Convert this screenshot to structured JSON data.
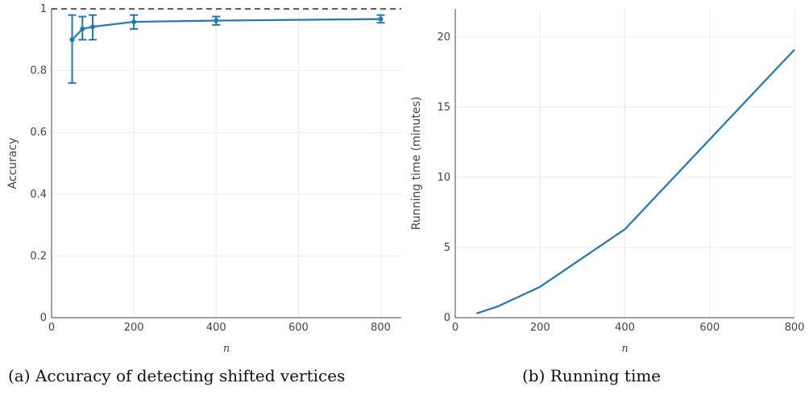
{
  "chart_data": [
    {
      "type": "line",
      "caption": "(a) Accuracy of detecting shifted vertices",
      "xlabel": "n",
      "ylabel": "Accuracy",
      "xlim": [
        0,
        850
      ],
      "ylim": [
        0,
        1
      ],
      "x_ticks": [
        0,
        200,
        400,
        600,
        800
      ],
      "y_ticks": [
        0,
        0.2,
        0.4,
        0.6,
        0.8,
        1
      ],
      "x_tick_labels": [
        "0",
        "200",
        "400",
        "600",
        "800"
      ],
      "y_tick_labels": [
        "0",
        "0.2",
        "0.4",
        "0.6",
        "0.8",
        "1"
      ],
      "grid": true,
      "reference_line": {
        "y": 1,
        "style": "dashed",
        "color": "#000000"
      },
      "color": "#1f77b4",
      "series": [
        {
          "x": [
            50,
            75,
            100,
            200,
            400,
            800
          ],
          "y": [
            0.9,
            0.935,
            0.942,
            0.958,
            0.962,
            0.967
          ],
          "error_low": [
            0.76,
            0.9,
            0.9,
            0.935,
            0.948,
            0.955
          ],
          "error_high": [
            0.98,
            0.975,
            0.98,
            0.98,
            0.975,
            0.98
          ]
        }
      ]
    },
    {
      "type": "line",
      "caption": "(b) Running time",
      "xlabel": "n",
      "ylabel": "Running time (minutes)",
      "xlim": [
        0,
        800
      ],
      "ylim": [
        0,
        22
      ],
      "x_ticks": [
        0,
        200,
        400,
        600,
        800
      ],
      "y_ticks": [
        0,
        5,
        10,
        15,
        20
      ],
      "x_tick_labels": [
        "0",
        "200",
        "400",
        "600",
        "800"
      ],
      "y_tick_labels": [
        "0",
        "5",
        "10",
        "15",
        "20"
      ],
      "grid": true,
      "color": "#1f77b4",
      "series": [
        {
          "x": [
            50,
            100,
            200,
            400,
            800
          ],
          "y": [
            0.3,
            0.8,
            2.2,
            6.3,
            19.1
          ]
        }
      ]
    }
  ]
}
